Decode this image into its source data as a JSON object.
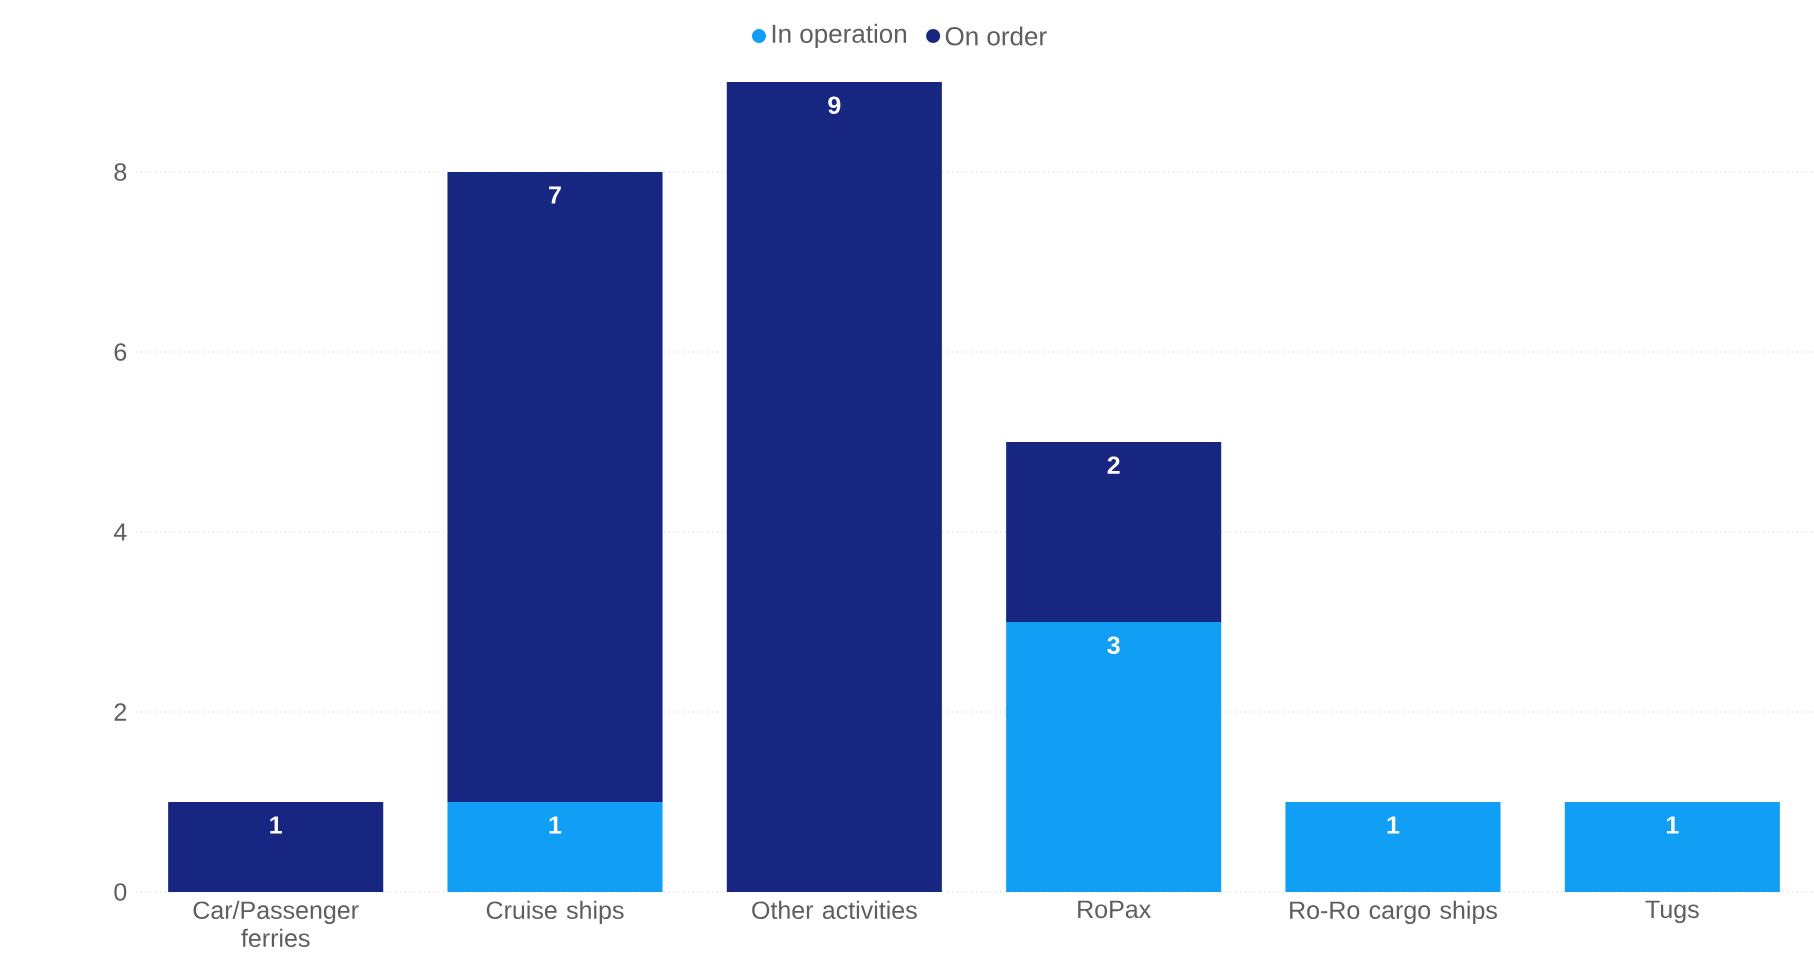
{
  "chart_data": {
    "type": "bar",
    "stacked": true,
    "categories": [
      "Car/Passenger ferries",
      "Cruise ships",
      "Other activities",
      "RoPax",
      "Ro-Ro cargo ships",
      "Tugs"
    ],
    "series": [
      {
        "name": "In operation",
        "color": "#119ef5",
        "values": [
          null,
          1,
          null,
          3,
          1,
          1
        ]
      },
      {
        "name": "On order",
        "color": "#172680",
        "values": [
          1,
          7,
          9,
          2,
          null,
          null
        ]
      }
    ],
    "ylim": [
      0,
      9
    ],
    "yticks": [
      0,
      2,
      4,
      6,
      8
    ],
    "grid": "y",
    "legend": "top",
    "data_labels": true
  }
}
